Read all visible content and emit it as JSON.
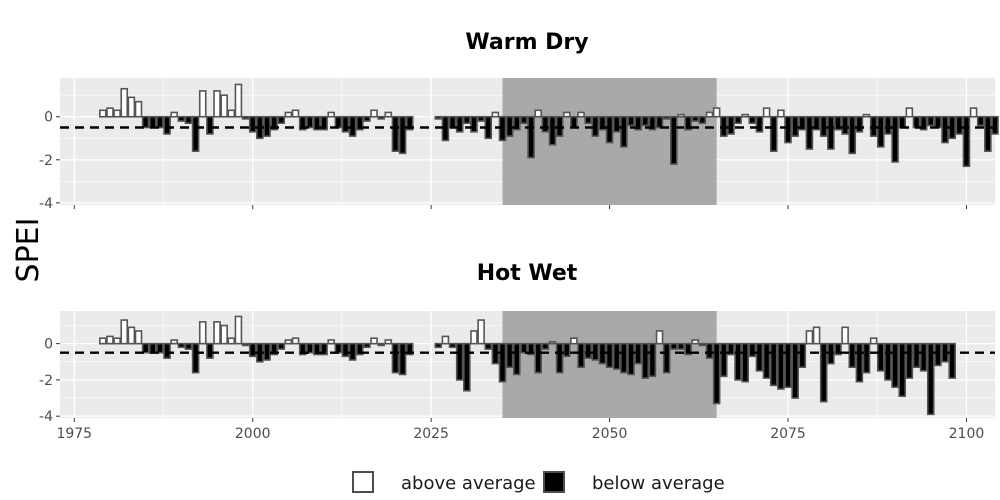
{
  "chart_data": {
    "type": "bar",
    "ylabel": "SPEI",
    "x_range": [
      1973,
      2104
    ],
    "y_range": [
      -4.1,
      1.8
    ],
    "x_ticks": [
      1975,
      2000,
      2025,
      2050,
      2075,
      2100
    ],
    "y_ticks": [
      -4,
      -2,
      0
    ],
    "threshold": -0.5,
    "highlight_period": [
      2035,
      2065
    ],
    "colors": {
      "panel_bg": "#ebebeb",
      "grid": "#ffffff",
      "highlight": "#a9a9a9",
      "above_fill": "#ffffff",
      "below_fill": "#000000",
      "bar_outline": "#555555"
    },
    "legend": {
      "above": "above average",
      "below": "below average"
    },
    "panels": [
      {
        "title": "Warm Dry",
        "segments": [
          {
            "start": 1979,
            "values": [
              0.3,
              0.4,
              0.3,
              1.3,
              0.9,
              0.7,
              -0.5,
              -0.5,
              -0.5,
              -0.8,
              0.2,
              -0.2,
              -0.3,
              -1.6,
              1.2,
              -0.8,
              1.2,
              1.0,
              0.3,
              1.5,
              -0.1,
              -0.7,
              -1.0,
              -0.9,
              -0.6,
              -0.3,
              0.2,
              0.3,
              -0.6,
              -0.5,
              -0.6,
              -0.6,
              0.2,
              -0.5,
              -0.7,
              -0.9,
              -0.6,
              -0.2,
              0.3,
              -0.1,
              0.2,
              -1.6,
              -1.7,
              -0.6
            ]
          },
          {
            "start": 2026,
            "values": [
              -0.1,
              -1.1,
              -0.5,
              -0.7,
              -0.3,
              -0.7,
              -0.2,
              -1.0,
              0.2,
              -1.1,
              -0.9,
              -0.6,
              -0.3,
              -1.9,
              0.3,
              -0.7,
              -1.3,
              -0.9,
              0.2,
              -0.5,
              0.2,
              -0.3,
              -0.9,
              -0.6,
              -1.2,
              -0.7,
              -1.4,
              -0.4,
              -0.6,
              -0.4,
              -0.6,
              -0.5,
              -0.1,
              -2.2,
              0.1,
              -0.6,
              -0.2,
              -0.3,
              0.2,
              0.4,
              -0.9,
              -0.8,
              -0.3,
              0.1,
              -0.3,
              -0.7,
              0.4,
              -1.6,
              0.3,
              -1.2,
              -0.9,
              -0.6,
              -1.5,
              -0.6,
              -0.9,
              -1.5,
              -0.6,
              -0.8,
              -1.7,
              -0.7,
              0.1,
              -0.9,
              -1.4,
              -0.8,
              -2.1,
              -0.5,
              0.4,
              -0.5,
              -0.6,
              -0.4,
              -0.5,
              -1.2,
              -1.0,
              -0.8,
              -2.3,
              0.4,
              -0.4,
              -1.6,
              -0.8
            ]
          }
        ]
      },
      {
        "title": "Hot Wet",
        "segments": [
          {
            "start": 1979,
            "values": [
              0.3,
              0.4,
              0.3,
              1.3,
              0.9,
              0.7,
              -0.5,
              -0.5,
              -0.5,
              -0.8,
              0.2,
              -0.2,
              -0.3,
              -1.6,
              1.2,
              -0.8,
              1.2,
              1.0,
              0.3,
              1.5,
              -0.1,
              -0.7,
              -1.0,
              -0.9,
              -0.6,
              -0.3,
              0.2,
              0.3,
              -0.6,
              -0.5,
              -0.6,
              -0.6,
              0.2,
              -0.5,
              -0.7,
              -0.9,
              -0.6,
              -0.2,
              0.3,
              -0.1,
              0.2,
              -1.6,
              -1.7,
              -0.6
            ]
          },
          {
            "start": 2026,
            "values": [
              -0.2,
              0.4,
              -0.2,
              -2.0,
              -2.6,
              0.7,
              1.3,
              -0.3,
              -1.1,
              -2.1,
              -1.3,
              -1.7,
              -0.5,
              -0.6,
              -1.6,
              -0.3,
              0.1,
              -1.6,
              -0.7,
              0.3,
              -1.3,
              -0.8,
              -0.9,
              -1.1,
              -1.3,
              -1.4,
              -1.6,
              -1.7,
              -1.1,
              -1.9,
              -1.8,
              0.7,
              -1.6,
              -0.3,
              -0.3,
              -0.6,
              0.2,
              -0.1,
              -0.8,
              -3.3,
              -1.8,
              -0.6,
              -2.0,
              -2.1,
              -0.7,
              -1.5,
              -1.9,
              -2.3,
              -2.5,
              -2.4,
              -3.0,
              -1.3,
              0.7,
              0.9,
              -3.2,
              -1.1,
              -0.6,
              0.9,
              -1.3,
              -2.1,
              -1.6,
              0.3,
              -1.5,
              -2.0,
              -2.4,
              -2.9,
              -1.9,
              -1.3,
              -1.5,
              -3.9,
              -1.2,
              -1.0,
              -1.9
            ]
          }
        ]
      }
    ]
  }
}
